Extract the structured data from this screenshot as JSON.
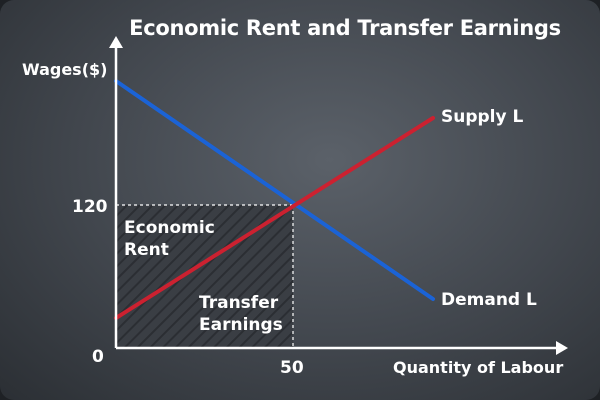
{
  "title": "Economic Rent and Transfer Earnings",
  "y_axis_label": "Wages($)",
  "x_axis_label": "Quantity of Labour",
  "origin_label": "0",
  "equilibrium": {
    "wage": "120",
    "quantity": "50"
  },
  "curves": {
    "supply": {
      "label": "Supply L",
      "color": "#cc2130"
    },
    "demand": {
      "label": "Demand L",
      "color": "#1b63d6"
    }
  },
  "areas": {
    "economic_rent": {
      "line1": "Economic",
      "line2": "Rent"
    },
    "transfer_earnings": {
      "line1": "Transfer",
      "line2": "Earnings"
    }
  },
  "colors": {
    "background": "#41464d",
    "axis": "#ffffff",
    "text": "#ffffff"
  }
}
